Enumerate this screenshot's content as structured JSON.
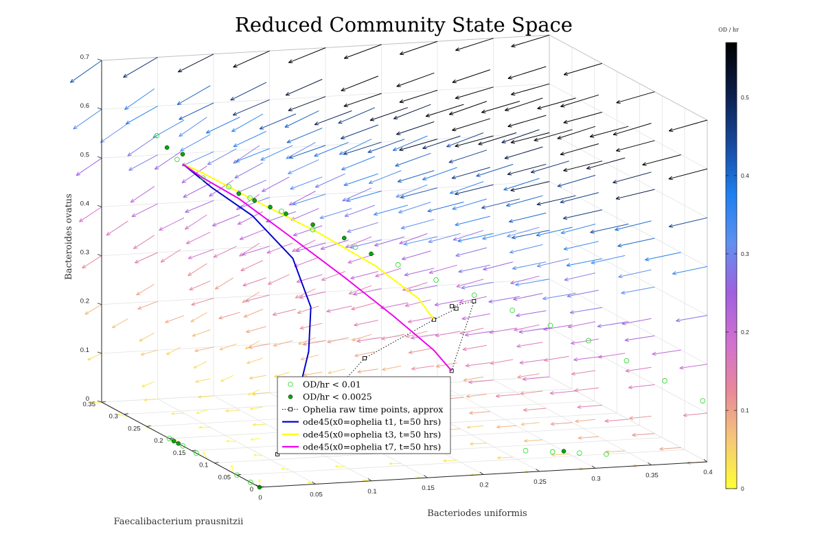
{
  "chart_data": {
    "type": "scatter",
    "title": "Reduced Community State Space",
    "xlabel": "Bacteriodes uniformis",
    "ylabel": "Faecalibacterium prausnitzii",
    "zlabel": "Bacteroides ovatus",
    "xlim": [
      0,
      0.4
    ],
    "ylim": [
      0,
      0.35
    ],
    "zlim": [
      0,
      0.7
    ],
    "x_ticks": [
      "0",
      "0.05",
      "0.1",
      "0.15",
      "0.2",
      "0.25",
      "0.3",
      "0.35",
      "0.4"
    ],
    "x_tick_values": [
      0,
      0.05,
      0.1,
      0.15,
      0.2,
      0.25,
      0.3,
      0.35,
      0.4
    ],
    "y_ticks": [
      "0",
      "0.05",
      "0.1",
      "0.15",
      "0.2",
      "0.25",
      "0.3",
      "0.35"
    ],
    "y_tick_values": [
      0,
      0.05,
      0.1,
      0.15,
      0.2,
      0.25,
      0.3,
      0.35
    ],
    "z_ticks": [
      "0",
      "0.1",
      "0.2",
      "0.3",
      "0.4",
      "0.5",
      "0.6",
      "0.7"
    ],
    "z_tick_values": [
      0,
      0.1,
      0.2,
      0.3,
      0.4,
      0.5,
      0.6,
      0.7
    ],
    "grid": true,
    "legend_position": "bottom-center",
    "colorbar": {
      "label": "OD / hr",
      "ticks": [
        "0",
        "0.1",
        "0.2",
        "0.3",
        "0.4",
        "0.5"
      ],
      "tick_values": [
        0,
        0.1,
        0.2,
        0.3,
        0.4,
        0.5
      ],
      "max": 0.57,
      "colormap": [
        "#ffff33",
        "#f5c878",
        "#e8889a",
        "#d070d0",
        "#a060e0",
        "#6090f0",
        "#1e80f0",
        "#184aa0",
        "#0a1c48",
        "#000000"
      ]
    },
    "legend": [
      {
        "label": "OD/hr < 0.01",
        "marker": "open-circle",
        "color": "#33dd33"
      },
      {
        "label": "OD/hr < 0.0025",
        "marker": "filled-circle",
        "color": "#00aa00"
      },
      {
        "label": "Ophelia raw time points, approx",
        "marker": "open-square-dotted",
        "color": "#000000"
      },
      {
        "label": "ode45(x0=ophelia t1, t=50 hrs)",
        "marker": "line",
        "color": "#0000cc"
      },
      {
        "label": "ode45(x0=ophelia t3, t=50 hrs)",
        "marker": "line",
        "color": "#ffff00"
      },
      {
        "label": "ode45(x0=ophelia t7, t=50 hrs)",
        "marker": "line",
        "color": "#ee00ee"
      }
    ],
    "series": [
      {
        "type": "line",
        "name": "Ophelia raw time points, approx",
        "color": "#000000",
        "points": [
          [
            0.02,
            0.01,
            0.06
          ],
          [
            0.11,
            0.04,
            0.23
          ],
          [
            0.18,
            0.06,
            0.29
          ],
          [
            0.2,
            0.06,
            0.31
          ],
          [
            0.2,
            0.07,
            0.31
          ],
          [
            0.24,
            0.12,
            0.29
          ],
          [
            0.22,
            0.12,
            0.15
          ]
        ]
      },
      {
        "type": "line",
        "name": "ode45(x0=ophelia t1, t=50 hrs)",
        "color": "#0000cc",
        "points": [
          [
            0.02,
            0.01,
            0.06
          ],
          [
            0.04,
            0.02,
            0.15
          ],
          [
            0.06,
            0.04,
            0.25
          ],
          [
            0.07,
            0.06,
            0.33
          ],
          [
            0.07,
            0.1,
            0.41
          ],
          [
            0.05,
            0.14,
            0.48
          ],
          [
            0.03,
            0.18,
            0.52
          ],
          [
            0.02,
            0.22,
            0.55
          ]
        ]
      },
      {
        "type": "line",
        "name": "ode45(x0=ophelia t3, t=50 hrs)",
        "color": "#ffff00",
        "points": [
          [
            0.18,
            0.06,
            0.29
          ],
          [
            0.17,
            0.07,
            0.33
          ],
          [
            0.14,
            0.09,
            0.39
          ],
          [
            0.1,
            0.12,
            0.45
          ],
          [
            0.06,
            0.16,
            0.5
          ],
          [
            0.03,
            0.2,
            0.54
          ],
          [
            0.02,
            0.22,
            0.55
          ]
        ]
      },
      {
        "type": "line",
        "name": "ode45(x0=ophelia t7, t=50 hrs)",
        "color": "#ee00ee",
        "points": [
          [
            0.22,
            0.12,
            0.15
          ],
          [
            0.2,
            0.11,
            0.2
          ],
          [
            0.16,
            0.1,
            0.28
          ],
          [
            0.12,
            0.11,
            0.36
          ],
          [
            0.08,
            0.14,
            0.44
          ],
          [
            0.05,
            0.17,
            0.5
          ],
          [
            0.03,
            0.2,
            0.53
          ],
          [
            0.02,
            0.22,
            0.55
          ]
        ]
      },
      {
        "type": "scatter",
        "name": "OD/hr < 0.01",
        "marker": "open-circle",
        "color": "#33dd33",
        "points": [
          [
            0.005,
            0.24,
            0.6
          ],
          [
            0.015,
            0.22,
            0.56
          ],
          [
            0.03,
            0.2,
            0.53
          ],
          [
            0.045,
            0.18,
            0.52
          ],
          [
            0.06,
            0.17,
            0.5
          ],
          [
            0.08,
            0.15,
            0.48
          ],
          [
            0.1,
            0.13,
            0.45
          ],
          [
            0.13,
            0.11,
            0.42
          ],
          [
            0.16,
            0.09,
            0.39
          ],
          [
            0.19,
            0.08,
            0.36
          ],
          [
            0.22,
            0.07,
            0.33
          ],
          [
            0.25,
            0.06,
            0.3
          ],
          [
            0.28,
            0.05,
            0.27
          ],
          [
            0.31,
            0.04,
            0.24
          ],
          [
            0.34,
            0.03,
            0.2
          ],
          [
            0.37,
            0.02,
            0.16
          ],
          [
            0.4,
            0.01,
            0.12
          ],
          [
            0.27,
            0.08,
            0.0
          ],
          [
            0.29,
            0.07,
            0.0
          ],
          [
            0.31,
            0.06,
            0.0
          ],
          [
            0.33,
            0.05,
            0.0
          ],
          [
            0.0,
            0.2,
            0.0
          ],
          [
            0.0,
            0.17,
            0.0
          ],
          [
            0.0,
            0.14,
            0.0
          ],
          [
            0.0,
            0.02,
            0.0
          ],
          [
            0.0,
            0.05,
            0.0
          ]
        ]
      },
      {
        "type": "scatter",
        "name": "OD/hr < 0.0025",
        "marker": "filled-circle",
        "color": "#00aa00",
        "points": [
          [
            0.01,
            0.23,
            0.58
          ],
          [
            0.02,
            0.22,
            0.57
          ],
          [
            0.05,
            0.17,
            0.51
          ],
          [
            0.06,
            0.16,
            0.5
          ],
          [
            0.07,
            0.15,
            0.49
          ],
          [
            0.08,
            0.14,
            0.48
          ],
          [
            0.1,
            0.13,
            0.46
          ],
          [
            0.12,
            0.11,
            0.44
          ],
          [
            0.14,
            0.1,
            0.41
          ],
          [
            0.3,
            0.07,
            0.0
          ],
          [
            0.0,
            0.19,
            0.0
          ],
          [
            0.0,
            0.18,
            0.0
          ],
          [
            0.0,
            0.0,
            0.0
          ]
        ]
      }
    ]
  }
}
